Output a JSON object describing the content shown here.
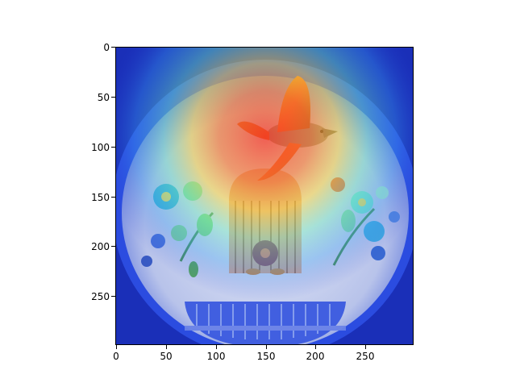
{
  "figure": {
    "image_description_tag": "heatmap-overlay-on-decorative-plate",
    "colormap": "jet",
    "colors": {
      "plate_rim": "#1b3fd0",
      "plate_center": "#d9dff2",
      "heat_hot": "#ff3b1f",
      "heat_warm": "#ffd23a",
      "heat_mid": "#48e0c8",
      "heat_cool": "#2a4de0",
      "basket": "#3355d8",
      "bird_body": "#7c7f86",
      "flowers": "#26a0c8"
    }
  },
  "axes": {
    "x_ticks": [
      "0",
      "50",
      "100",
      "150",
      "200",
      "250"
    ],
    "y_ticks": [
      "0",
      "50",
      "100",
      "150",
      "200",
      "250"
    ],
    "x_range": [
      0,
      299
    ],
    "y_range": [
      0,
      299
    ]
  }
}
